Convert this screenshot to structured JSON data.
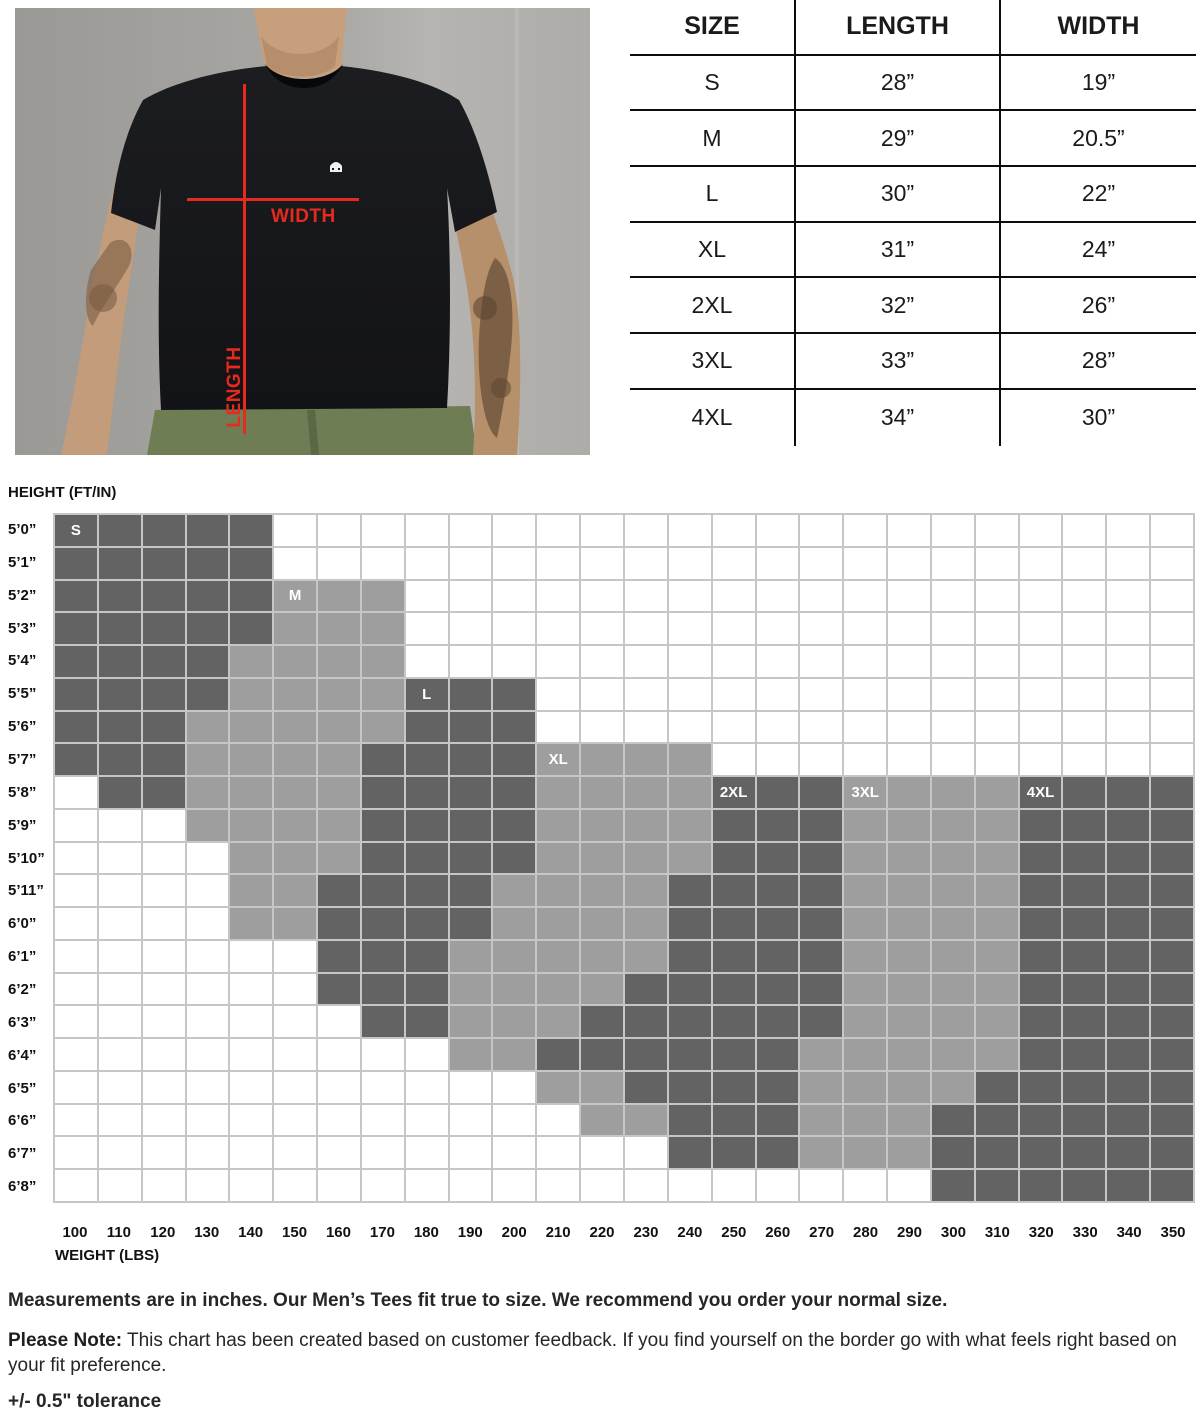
{
  "photo": {
    "width_label": "WIDTH",
    "length_label": "LENGTH",
    "accent_color": "#e8291d",
    "tee_color": "#17181b",
    "wall_color": "#a9a7a3",
    "pants_color": "#6f7d54"
  },
  "size_table": {
    "headers": [
      "SIZE",
      "LENGTH",
      "WIDTH"
    ],
    "rows": [
      {
        "size": "S",
        "length": "28”",
        "width": "19”"
      },
      {
        "size": "M",
        "length": "29”",
        "width": "20.5”"
      },
      {
        "size": "L",
        "length": "30”",
        "width": "22”"
      },
      {
        "size": "XL",
        "length": "31”",
        "width": "24”"
      },
      {
        "size": "2XL",
        "length": "32”",
        "width": "26”"
      },
      {
        "size": "3XL",
        "length": "33”",
        "width": "28”"
      },
      {
        "size": "4XL",
        "length": "34”",
        "width": "30”"
      }
    ]
  },
  "chart_data": [
    {
      "type": "table",
      "title": "Men's tee measurements (inches)",
      "columns": [
        "SIZE",
        "LENGTH",
        "WIDTH"
      ],
      "rows": [
        [
          "S",
          "28”",
          "19”"
        ],
        [
          "M",
          "29”",
          "20.5”"
        ],
        [
          "L",
          "30”",
          "22”"
        ],
        [
          "XL",
          "31”",
          "24”"
        ],
        [
          "2XL",
          "32”",
          "26”"
        ],
        [
          "3XL",
          "33”",
          "28”"
        ],
        [
          "4XL",
          "34”",
          "30”"
        ]
      ]
    },
    {
      "type": "heatmap",
      "title": "Recommended size by height and weight",
      "xlabel": "WEIGHT (LBS)",
      "ylabel": "HEIGHT (FT/IN)",
      "x_ticks": [
        "100",
        "110",
        "120",
        "130",
        "140",
        "150",
        "160",
        "170",
        "180",
        "190",
        "200",
        "210",
        "220",
        "230",
        "240",
        "250",
        "260",
        "270",
        "280",
        "290",
        "300",
        "310",
        "320",
        "330",
        "340",
        "350"
      ],
      "y_ticks": [
        "5’0”",
        "5’1”",
        "5’2”",
        "5’3”",
        "5’4”",
        "5’5”",
        "5’6”",
        "5’7”",
        "5’8”",
        "5’9”",
        "5’10”",
        "5’11”",
        "6’0”",
        "6’1”",
        "6’2”",
        "6’3”",
        "6’4”",
        "6’5”",
        "6’6”",
        "6’7”",
        "6’8”"
      ],
      "legend": {
        "D": "dark-gray cell (sizes S, L, 2XL, 4XL)",
        "L": "light-gray cell (sizes M, XL, 3XL)",
        "W": "white cell (no recommendation)"
      },
      "colors": {
        "D": "#636363",
        "L": "#9e9e9e",
        "W": "#ffffff",
        "gridline": "#c6c6c6"
      },
      "cells": [
        "DDDDDWWWWWWWWWWWWWWWWWWWWW",
        "DDDDDWWWWWWWWWWWWWWWWWWWWW",
        "DDDDDLLLWWWWWWWWWWWWWWWWWW",
        "DDDDDLLLWWWWWWWWWWWWWWWWWW",
        "DDDDLLLLWWWWWWWWWWWWWWWWWW",
        "DDDDLLLLDDDWWWWWWWWWWWWWWW",
        "DDDLLLLLDDDWWWWWWWWWWWWWWW",
        "DDDLLLLDDDDLLLLWWWWWWWWWWW",
        "WDDLLLLDDDDLLLLDDDLLLLDDDD",
        "WWWLLLLDDDDLLLLDDDLLLLDDDD",
        "WWWWLLLDDDDLLLLDDDLLLLDDDD",
        "WWWWLLDDDDLLLLDDDDLLLLDDDD",
        "WWWWLLDDDDLLLLDDDDLLLLDDDD",
        "WWWWWWDDDLLLLLDDDDLLLLDDDD",
        "WWWWWWDDDLLLLDDDDDLLLLDDDD",
        "WWWWWWWDDLLLDDDDDDLLLLDDDD",
        "WWWWWWWWWLLDDDDDDLLLLLDDDD",
        "WWWWWWWWWWWLLDDDDLLLLDDDDD",
        "WWWWWWWWWWWWLLDDDLLLDDDDDD",
        "WWWWWWWWWWWWWWDDDLLLDDDDDD",
        "WWWWWWWWWWWWWWWWWWWWDDDDDD"
      ],
      "size_labels": [
        {
          "text": "S",
          "row": 0,
          "col": 0
        },
        {
          "text": "M",
          "row": 2,
          "col": 5
        },
        {
          "text": "L",
          "row": 5,
          "col": 8
        },
        {
          "text": "XL",
          "row": 7,
          "col": 11
        },
        {
          "text": "2XL",
          "row": 8,
          "col": 15
        },
        {
          "text": "3XL",
          "row": 8,
          "col": 18
        },
        {
          "text": "4XL",
          "row": 8,
          "col": 22
        }
      ]
    }
  ],
  "notes": {
    "line1": "Measurements are in inches. Our Men’s Tees fit true to size. We recommend you order your normal size.",
    "note_label": "Please Note:",
    "note_text": " This chart has been created based on customer feedback. If you find yourself on the border go with what feels right based on your fit preference.",
    "tolerance": "+/- 0.5\" tolerance"
  }
}
